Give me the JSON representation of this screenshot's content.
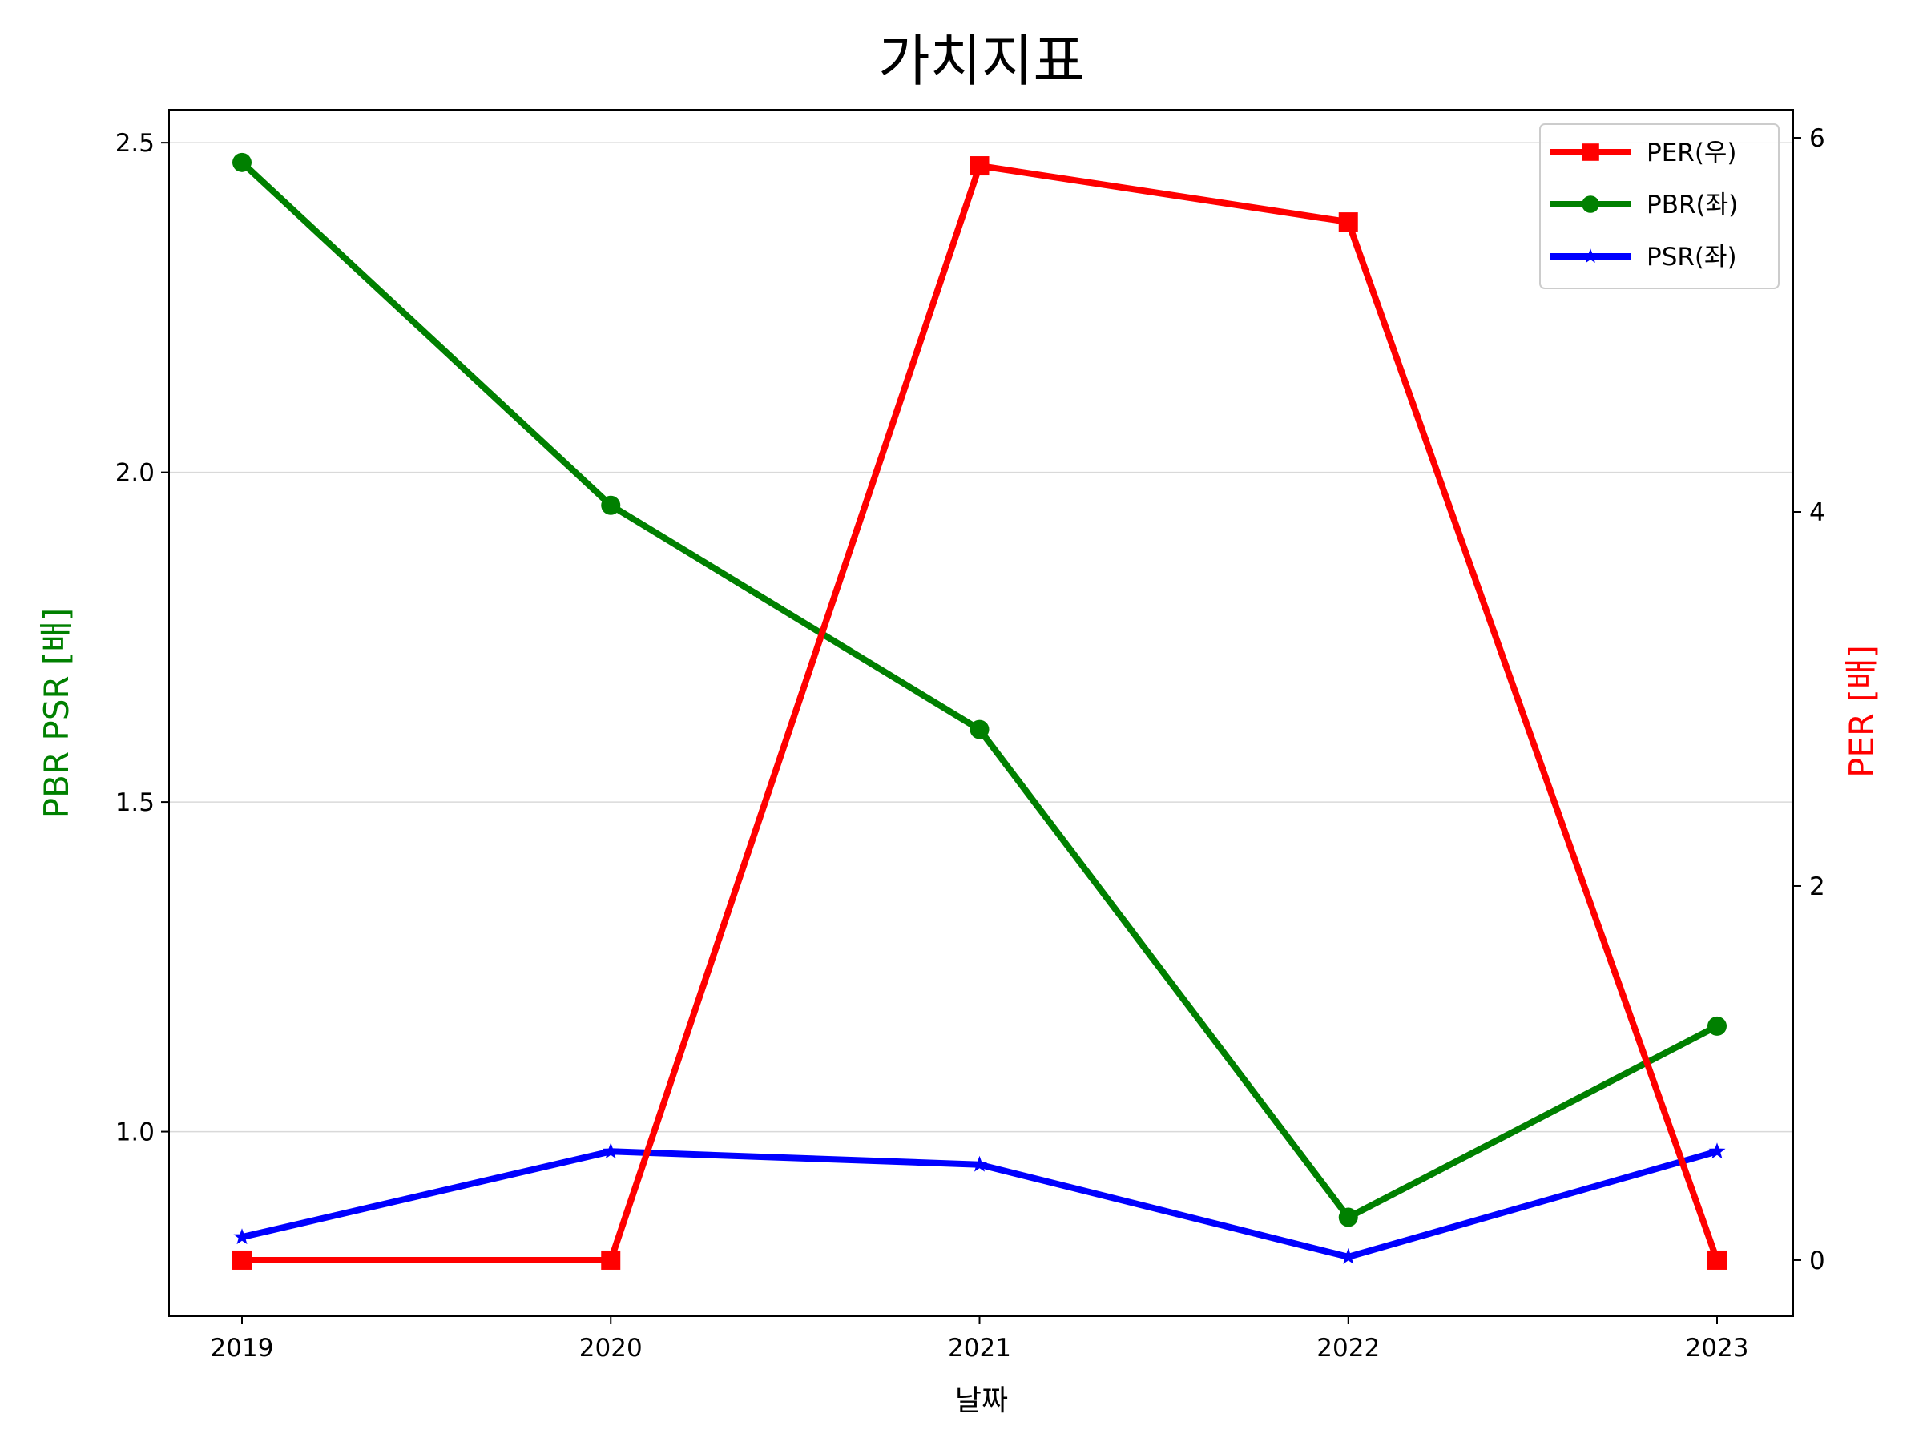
{
  "chart_data": {
    "type": "line",
    "title": "가치지표",
    "xlabel": "날짜",
    "ylabel_left": "PBR PSR [배]",
    "ylabel_right": "PER [배]",
    "categories": [
      "2019",
      "2020",
      "2021",
      "2022",
      "2023"
    ],
    "y_left_lim": [
      0.72,
      2.55
    ],
    "y_left_ticks": [
      1.0,
      1.5,
      2.0,
      2.5
    ],
    "y_left_tick_labels": [
      "1.0",
      "1.5",
      "2.0",
      "2.5"
    ],
    "y_right_lim": [
      -0.3,
      6.15
    ],
    "y_right_ticks": [
      0,
      2,
      4,
      6
    ],
    "y_right_tick_labels": [
      "0",
      "2",
      "4",
      "6"
    ],
    "grid": "horizontal (left axis)",
    "legend_position": "top-right",
    "colors": {
      "left_label": "#008000",
      "right_label": "#ff0000"
    },
    "series": [
      {
        "name": "PER(우)",
        "axis": "right",
        "color": "#ff0000",
        "marker": "square",
        "values": [
          0.0,
          0.0,
          5.85,
          5.55,
          0.0
        ]
      },
      {
        "name": "PBR(좌)",
        "axis": "left",
        "color": "#008000",
        "marker": "circle",
        "values": [
          2.47,
          1.95,
          1.61,
          0.87,
          1.16
        ]
      },
      {
        "name": "PSR(좌)",
        "axis": "left",
        "color": "#0000ff",
        "marker": "star",
        "values": [
          0.84,
          0.97,
          0.95,
          0.81,
          0.97
        ]
      }
    ]
  }
}
